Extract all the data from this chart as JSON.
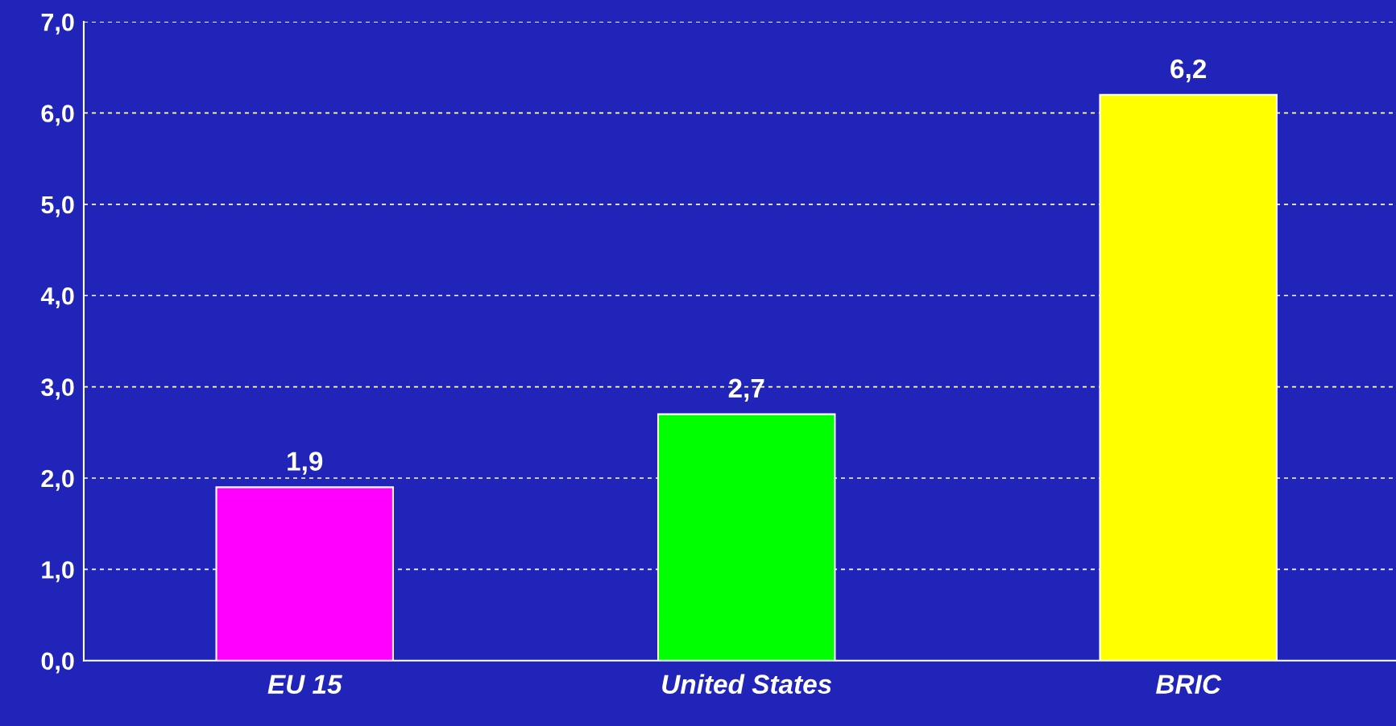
{
  "chart_data": {
    "type": "bar",
    "categories": [
      "EU 15",
      "United States",
      "BRIC"
    ],
    "values": [
      1.9,
      2.7,
      6.2
    ],
    "colors": [
      "#ff00ff",
      "#00ff00",
      "#ffff00"
    ],
    "value_labels": [
      "1,9",
      "2,7",
      "6,2"
    ],
    "ylim": [
      0,
      7
    ],
    "yticks": [
      {
        "value": 0,
        "label": "0,0"
      },
      {
        "value": 1,
        "label": "1,0"
      },
      {
        "value": 2,
        "label": "2,0"
      },
      {
        "value": 3,
        "label": "3,0"
      },
      {
        "value": 4,
        "label": "4,0"
      },
      {
        "value": 5,
        "label": "5,0"
      },
      {
        "value": 6,
        "label": "6,0"
      },
      {
        "value": 7,
        "label": "7,0"
      }
    ],
    "grid": "y",
    "legend": false
  }
}
